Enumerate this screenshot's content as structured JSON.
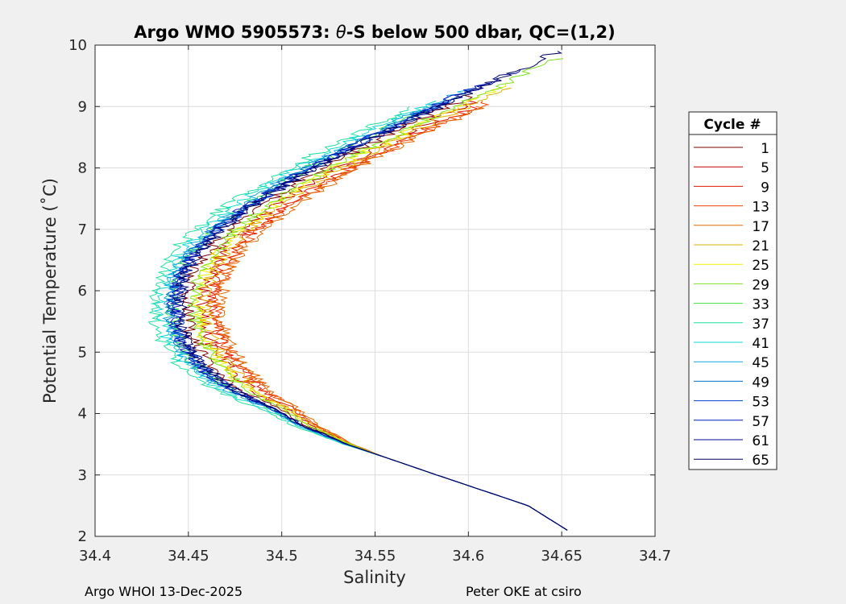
{
  "chart_data": {
    "type": "line",
    "title": "Argo WMO 5905573: θ-S below 500 dbar,  QC=(1,2)",
    "title_parts": {
      "prefix": "Argo WMO 5905573: ",
      "theta": "θ",
      "suffix": "-S below 500 dbar,  QC=(1,2)"
    },
    "xlabel": "Salinity",
    "ylabel": "Potential Temperature (˚C)",
    "xlim": [
      34.4,
      34.7
    ],
    "ylim": [
      2,
      10
    ],
    "xticks": [
      "34.4",
      "34.45",
      "34.5",
      "34.55",
      "34.6",
      "34.65",
      "34.7"
    ],
    "yticks": [
      "2",
      "3",
      "4",
      "5",
      "6",
      "7",
      "8",
      "9",
      "10"
    ],
    "grid": true,
    "legend": {
      "title": "Cycle #",
      "placement": "right-outside",
      "entries": [
        {
          "label": "1",
          "color": "#800000"
        },
        {
          "label": "5",
          "color": "#c00000"
        },
        {
          "label": "9",
          "color": "#e01a00"
        },
        {
          "label": "13",
          "color": "#f04000"
        },
        {
          "label": "17",
          "color": "#e06a00"
        },
        {
          "label": "21",
          "color": "#e0b000"
        },
        {
          "label": "25",
          "color": "#f0f000"
        },
        {
          "label": "29",
          "color": "#80e020"
        },
        {
          "label": "33",
          "color": "#40e040"
        },
        {
          "label": "37",
          "color": "#20e0a0"
        },
        {
          "label": "41",
          "color": "#10d8d0"
        },
        {
          "label": "45",
          "color": "#10a8e0"
        },
        {
          "label": "49",
          "color": "#0070c8"
        },
        {
          "label": "53",
          "color": "#0040d0"
        },
        {
          "label": "57",
          "color": "#0018c0"
        },
        {
          "label": "61",
          "color": "#000890"
        },
        {
          "label": "65",
          "color": "#000060"
        }
      ]
    },
    "base_profile": {
      "theta": [
        2.1,
        2.5,
        3.0,
        3.5,
        3.8,
        4.1,
        4.3,
        4.6,
        4.9,
        5.2,
        5.5,
        5.8,
        6.1,
        6.4,
        6.7,
        7.0,
        7.3,
        7.6,
        8.0,
        8.4,
        8.8,
        9.2,
        9.6
      ],
      "salinity": [
        34.653,
        34.632,
        34.583,
        34.535,
        34.512,
        34.495,
        34.48,
        34.465,
        34.455,
        34.449,
        34.446,
        34.445,
        34.447,
        34.451,
        34.458,
        34.468,
        34.481,
        34.496,
        34.518,
        34.544,
        34.571,
        34.599,
        34.627
      ]
    },
    "series": [
      {
        "name": "1",
        "s_offset": 0.004,
        "t_max": 9.2
      },
      {
        "name": "5",
        "s_offset": 0.012,
        "t_max": 9.1
      },
      {
        "name": "9",
        "s_offset": 0.018,
        "t_max": 9.0
      },
      {
        "name": "13",
        "s_offset": 0.02,
        "t_max": 9.1
      },
      {
        "name": "17",
        "s_offset": 0.022,
        "t_max": 9.0
      },
      {
        "name": "21",
        "s_offset": 0.014,
        "t_max": 9.3
      },
      {
        "name": "25",
        "s_offset": 0.01,
        "t_max": 9.4
      },
      {
        "name": "29",
        "s_offset": 0.008,
        "t_max": 9.8
      },
      {
        "name": "33",
        "s_offset": -0.004,
        "t_max": 9.0
      },
      {
        "name": "37",
        "s_offset": -0.014,
        "t_max": 9.0
      },
      {
        "name": "41",
        "s_offset": -0.01,
        "t_max": 9.1
      },
      {
        "name": "45",
        "s_offset": -0.006,
        "t_max": 9.3
      },
      {
        "name": "49",
        "s_offset": -0.004,
        "t_max": 9.2
      },
      {
        "name": "53",
        "s_offset": -0.002,
        "t_max": 9.1
      },
      {
        "name": "57",
        "s_offset": -0.003,
        "t_max": 9.4
      },
      {
        "name": "61",
        "s_offset": -0.001,
        "t_max": 9.6
      },
      {
        "name": "65",
        "s_offset": 0.0,
        "t_max": 9.9
      }
    ]
  },
  "footer": {
    "left": "Argo WHOI 13-Dec-2025",
    "right": "Peter OKE at csiro"
  }
}
